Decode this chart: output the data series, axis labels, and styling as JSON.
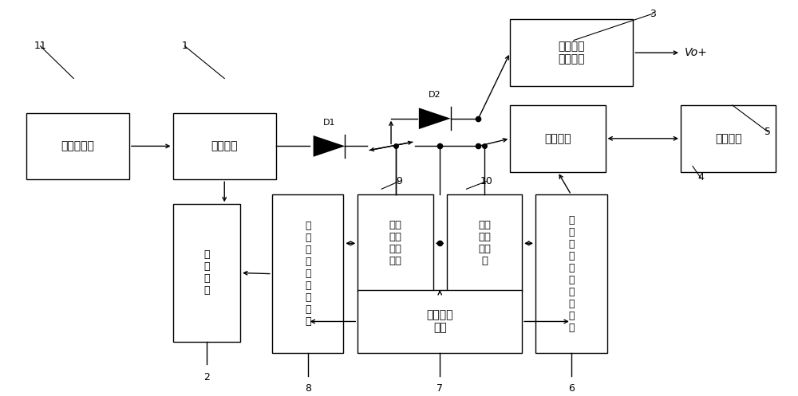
{
  "bg": "#ffffff",
  "boxes": {
    "CT": [
      0.03,
      0.29,
      0.13,
      0.175
    ],
    "REC": [
      0.215,
      0.29,
      0.13,
      0.175
    ],
    "DC": [
      0.64,
      0.045,
      0.155,
      0.175
    ],
    "BIDIR": [
      0.64,
      0.27,
      0.12,
      0.175
    ],
    "SC": [
      0.855,
      0.27,
      0.12,
      0.175
    ],
    "BYPASS": [
      0.215,
      0.53,
      0.085,
      0.36
    ],
    "OVD": [
      0.34,
      0.505,
      0.09,
      0.415
    ],
    "OVS": [
      0.448,
      0.505,
      0.095,
      0.255
    ],
    "CVS": [
      0.56,
      0.505,
      0.095,
      0.255
    ],
    "CHD": [
      0.672,
      0.505,
      0.09,
      0.415
    ],
    "REF": [
      0.448,
      0.755,
      0.207,
      0.165
    ]
  },
  "labels": {
    "CT": "电流互感器",
    "REC": "整流电路",
    "DC": "直流电压\n转换电路",
    "BIDIR": "双向开关",
    "SC": "超级电容",
    "BYPASS": "旁\n路\n开\n关",
    "OVD": "过\n压\n控\n制\n与\n驱\n动\n电\n路",
    "OVS": "过压\n保护\n采样\n电路",
    "CVS": "充电\n压采\n样电\n路",
    "CHD": "充\n放\n电\n控\n制\n与\n驱\n动\n电\n路",
    "REF": "基准电压\n电路"
  },
  "fontsizes": {
    "CT": 10,
    "REC": 10,
    "DC": 10,
    "BIDIR": 10,
    "SC": 10,
    "BYPASS": 9,
    "OVD": 9,
    "OVS": 9.5,
    "CVS": 9.5,
    "CHD": 9,
    "REF": 10
  }
}
